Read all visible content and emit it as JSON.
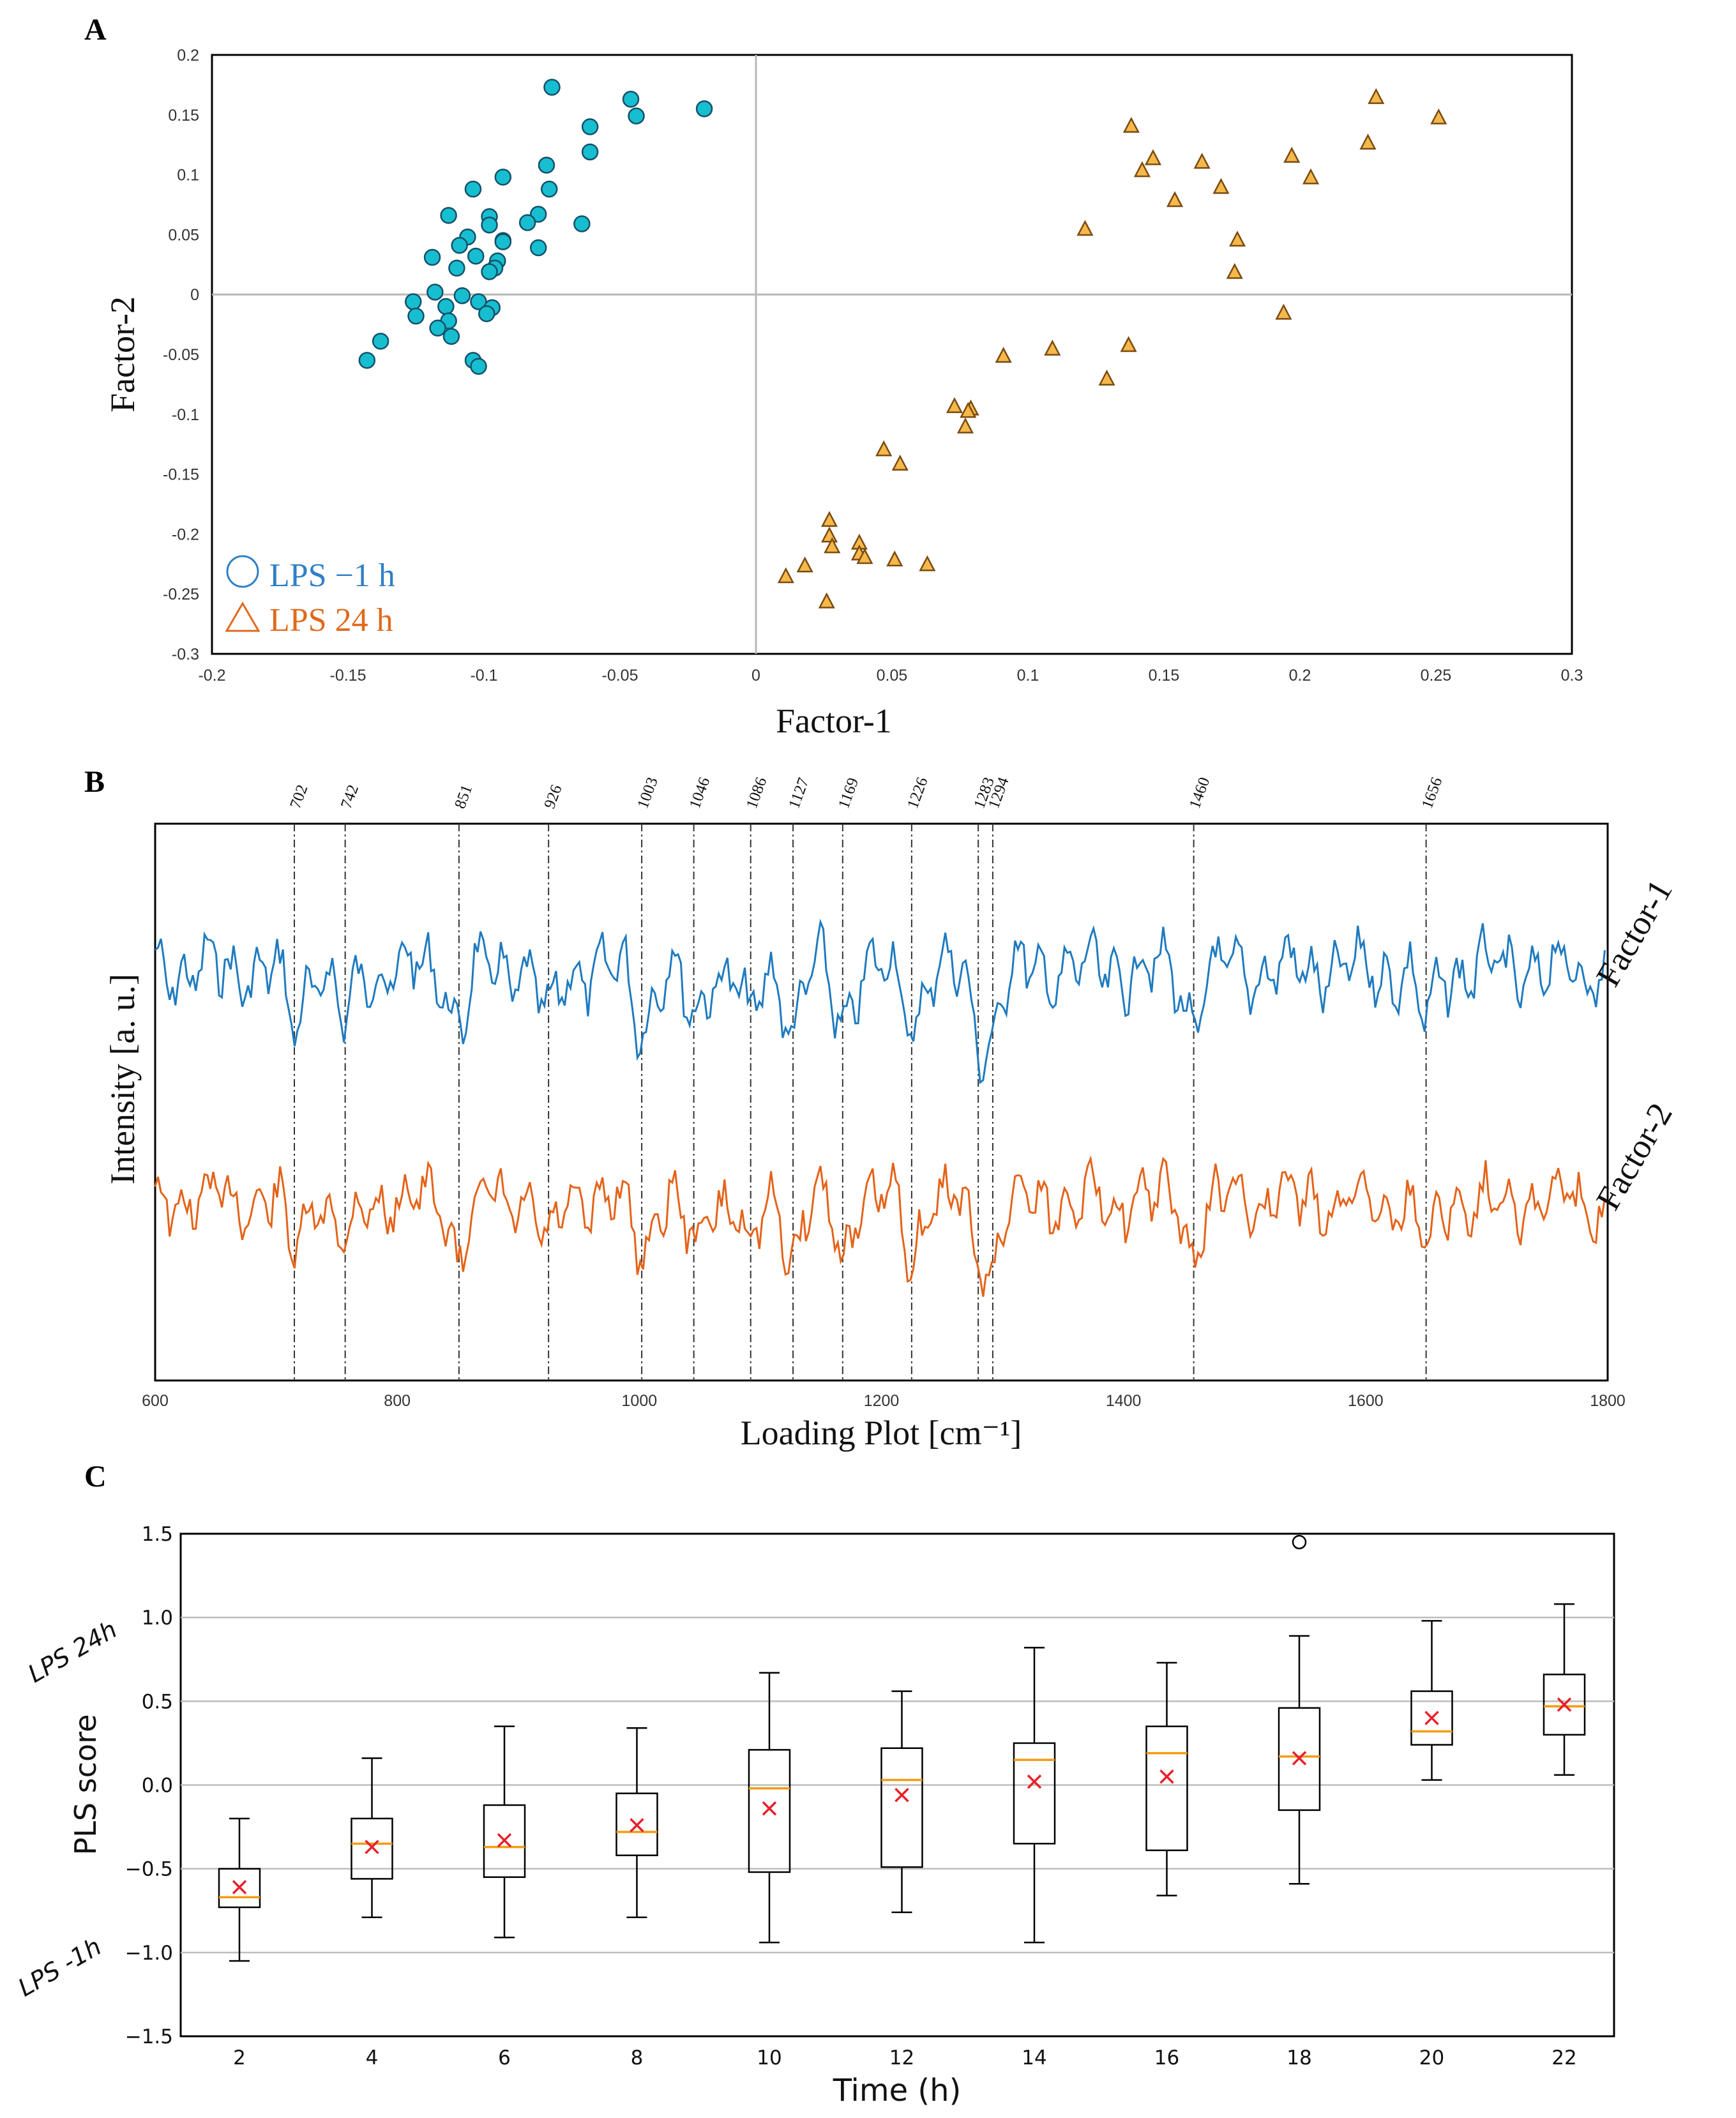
{
  "chart_data": [
    {
      "panel": "A",
      "type": "scatter",
      "xlabel": "Factor-1",
      "ylabel": "Factor-2",
      "xlim": [
        -0.2,
        0.3
      ],
      "ylim": [
        -0.3,
        0.2
      ],
      "xticks": [
        "-0.2",
        "-0.15",
        "-0.1",
        "-0.05",
        "0",
        "0.05",
        "0.1",
        "0.15",
        "0.2",
        "0.25",
        "0.3"
      ],
      "yticks": [
        "0.2",
        "0.15",
        "0.1",
        "0.05",
        "0",
        "-0.05",
        "-0.1",
        "-0.15",
        "-0.2",
        "-0.25",
        "-0.3"
      ],
      "legend_position": "bottom-left",
      "series": [
        {
          "name": "LPS −1 h",
          "marker": "circle",
          "color": "#17becf",
          "text_color": "#2f7fc6",
          "points": [
            [
              -0.075,
              0.173
            ],
            [
              -0.046,
              0.163
            ],
            [
              -0.044,
              0.149
            ],
            [
              -0.019,
              0.155
            ],
            [
              -0.061,
              0.14
            ],
            [
              -0.061,
              0.119
            ],
            [
              -0.077,
              0.108
            ],
            [
              -0.076,
              0.088
            ],
            [
              -0.093,
              0.098
            ],
            [
              -0.104,
              0.088
            ],
            [
              -0.064,
              0.059
            ],
            [
              -0.08,
              0.067
            ],
            [
              -0.084,
              0.06
            ],
            [
              -0.093,
              0.045
            ],
            [
              -0.093,
              0.044
            ],
            [
              -0.098,
              0.065
            ],
            [
              -0.098,
              0.058
            ],
            [
              -0.113,
              0.066
            ],
            [
              -0.106,
              0.048
            ],
            [
              -0.109,
              0.041
            ],
            [
              -0.103,
              0.032
            ],
            [
              -0.095,
              0.028
            ],
            [
              -0.096,
              0.022
            ],
            [
              -0.098,
              0.019
            ],
            [
              -0.08,
              0.039
            ],
            [
              -0.119,
              0.031
            ],
            [
              -0.11,
              0.022
            ],
            [
              -0.118,
              0.002
            ],
            [
              -0.108,
              -0.001
            ],
            [
              -0.102,
              -0.006
            ],
            [
              -0.126,
              -0.006
            ],
            [
              -0.114,
              -0.01
            ],
            [
              -0.097,
              -0.011
            ],
            [
              -0.099,
              -0.016
            ],
            [
              -0.113,
              -0.022
            ],
            [
              -0.117,
              -0.028
            ],
            [
              -0.112,
              -0.035
            ],
            [
              -0.125,
              -0.018
            ],
            [
              -0.138,
              -0.039
            ],
            [
              -0.143,
              -0.055
            ],
            [
              -0.104,
              -0.055
            ],
            [
              -0.102,
              -0.06
            ]
          ]
        },
        {
          "name": "LPS 24 h",
          "marker": "triangle",
          "color": "#f5b84a",
          "text_color": "#e06a1c",
          "points": [
            [
              0.228,
              0.165
            ],
            [
              0.251,
              0.148
            ],
            [
              0.225,
              0.127
            ],
            [
              0.138,
              0.141
            ],
            [
              0.197,
              0.116
            ],
            [
              0.164,
              0.111
            ],
            [
              0.146,
              0.114
            ],
            [
              0.142,
              0.104
            ],
            [
              0.204,
              0.098
            ],
            [
              0.171,
              0.09
            ],
            [
              0.154,
              0.079
            ],
            [
              0.121,
              0.055
            ],
            [
              0.177,
              0.046
            ],
            [
              0.176,
              0.019
            ],
            [
              0.194,
              -0.015
            ],
            [
              0.137,
              -0.042
            ],
            [
              0.109,
              -0.045
            ],
            [
              0.091,
              -0.051
            ],
            [
              0.129,
              -0.07
            ],
            [
              0.073,
              -0.093
            ],
            [
              0.079,
              -0.095
            ],
            [
              0.078,
              -0.097
            ],
            [
              0.077,
              -0.11
            ],
            [
              0.047,
              -0.129
            ],
            [
              0.053,
              -0.141
            ],
            [
              0.027,
              -0.188
            ],
            [
              0.027,
              -0.201
            ],
            [
              0.028,
              -0.21
            ],
            [
              0.038,
              -0.207
            ],
            [
              0.038,
              -0.216
            ],
            [
              0.04,
              -0.219
            ],
            [
              0.051,
              -0.221
            ],
            [
              0.063,
              -0.225
            ],
            [
              0.018,
              -0.226
            ],
            [
              0.011,
              -0.235
            ],
            [
              0.026,
              -0.256
            ]
          ]
        }
      ]
    },
    {
      "panel": "B",
      "type": "line",
      "xlabel": "Loading Plot [cm⁻¹]",
      "ylabel": "Intensity [a. u.]",
      "xlim": [
        600,
        1800
      ],
      "xticks": [
        "600",
        "800",
        "1000",
        "1200",
        "1400",
        "1600",
        "1800"
      ],
      "peaks": [
        "702",
        "742",
        "851",
        "926",
        "1003",
        "1046",
        "1086",
        "1127",
        "1169",
        "1226",
        "1283",
        "1294",
        "1460",
        "1656"
      ],
      "peak_positions": [
        715,
        757,
        851,
        925,
        1002,
        1045,
        1092,
        1127,
        1168,
        1225,
        1280,
        1292,
        1458,
        1650
      ],
      "series": [
        {
          "name": "Factor-1",
          "color": "#1f7bbf"
        },
        {
          "name": "Factor-2",
          "color": "#e4631a"
        }
      ]
    },
    {
      "panel": "C",
      "type": "box",
      "xlabel": "Time (h)",
      "ylabel": "PLS score",
      "ylim": [
        -1.5,
        1.5
      ],
      "yticks": [
        "1.5",
        "1.0",
        "0.5",
        "0.0",
        "−0.5",
        "−1.0",
        "−1.5"
      ],
      "annotations": [
        "LPS 24h",
        "LPS -1h"
      ],
      "categories": [
        "2",
        "4",
        "6",
        "8",
        "10",
        "12",
        "14",
        "16",
        "18",
        "20",
        "22"
      ],
      "boxes": [
        {
          "whisker_low": -1.05,
          "q1": -0.73,
          "median": -0.67,
          "q3": -0.5,
          "whisker_high": -0.2,
          "mean": -0.61
        },
        {
          "whisker_low": -0.79,
          "q1": -0.56,
          "median": -0.35,
          "q3": -0.2,
          "whisker_high": 0.16,
          "mean": -0.37
        },
        {
          "whisker_low": -0.91,
          "q1": -0.55,
          "median": -0.37,
          "q3": -0.12,
          "whisker_high": 0.35,
          "mean": -0.33
        },
        {
          "whisker_low": -0.79,
          "q1": -0.42,
          "median": -0.28,
          "q3": -0.05,
          "whisker_high": 0.34,
          "mean": -0.24
        },
        {
          "whisker_low": -0.94,
          "q1": -0.52,
          "median": -0.02,
          "q3": 0.21,
          "whisker_high": 0.67,
          "mean": -0.14
        },
        {
          "whisker_low": -0.76,
          "q1": -0.49,
          "median": 0.03,
          "q3": 0.22,
          "whisker_high": 0.56,
          "mean": -0.06
        },
        {
          "whisker_low": -0.94,
          "q1": -0.35,
          "median": 0.15,
          "q3": 0.25,
          "whisker_high": 0.82,
          "mean": 0.02
        },
        {
          "whisker_low": -0.66,
          "q1": -0.39,
          "median": 0.19,
          "q3": 0.35,
          "whisker_high": 0.73,
          "mean": 0.05
        },
        {
          "whisker_low": -0.59,
          "q1": -0.15,
          "median": 0.17,
          "q3": 0.46,
          "whisker_high": 0.89,
          "mean": 0.16,
          "outliers": [
            1.45
          ]
        },
        {
          "whisker_low": 0.03,
          "q1": 0.24,
          "median": 0.32,
          "q3": 0.56,
          "whisker_high": 0.98,
          "mean": 0.4
        },
        {
          "whisker_low": 0.06,
          "q1": 0.3,
          "median": 0.47,
          "q3": 0.66,
          "whisker_high": 1.08,
          "mean": 0.48
        }
      ]
    }
  ],
  "panels": {
    "a": "A",
    "b": "B",
    "c": "C"
  }
}
